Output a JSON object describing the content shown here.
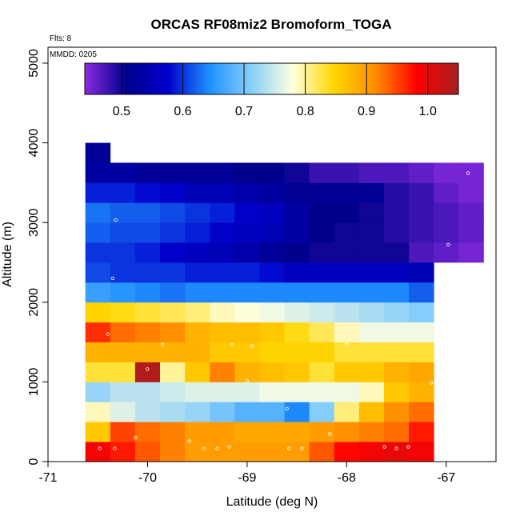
{
  "chart_data": {
    "type": "heatmap",
    "title": "ORCAS RF08miz2 Bromoform_TOGA",
    "annotations": {
      "flights": "Flts: 8",
      "date": "MMDD: 0205"
    },
    "xlabel": "Latitude (deg N)",
    "ylabel": "Altitude (m)",
    "xlim": [
      -71,
      -66.5
    ],
    "ylim": [
      0,
      5200
    ],
    "x_ticks": [
      -71,
      -70,
      -69,
      -68,
      -67
    ],
    "x_tick_labels": [
      "-71",
      "-70",
      "-69",
      "-68",
      "-67"
    ],
    "y_ticks": [
      0,
      1000,
      2000,
      3000,
      4000,
      5000
    ],
    "y_tick_labels": [
      "0",
      "1000",
      "2000",
      "3000",
      "4000",
      "5000"
    ],
    "colorbar": {
      "min": 0.44,
      "max": 1.05,
      "ticks": [
        0.5,
        0.6,
        0.7,
        0.8,
        0.9,
        1.0
      ],
      "tick_labels": [
        "0.5",
        "0.6",
        "0.7",
        "0.8",
        "0.9",
        "1.0"
      ],
      "stops": [
        "#8a2be2",
        "#00008b",
        "#0000cd",
        "#1e90ff",
        "#87cefa",
        "#ffffe0",
        "#ffd700",
        "#ff8c00",
        "#ff0000",
        "#a52020"
      ]
    },
    "x_cells": [
      -70.5,
      -70.25,
      -70.0,
      -69.75,
      -69.5,
      -69.25,
      -69.0,
      -68.75,
      -68.5,
      -68.25,
      -68.0,
      -67.75,
      -67.5,
      -67.25,
      -67.0,
      -66.75
    ],
    "rows": [
      {
        "alt": 125,
        "values": [
          0.99,
          0.97,
          0.94,
          0.92,
          0.9,
          0.9,
          0.9,
          0.9,
          0.9,
          0.94,
          0.98,
          0.99,
          1.0,
          0.99
        ]
      },
      {
        "alt": 375,
        "values": [
          0.86,
          0.95,
          0.93,
          0.92,
          0.9,
          0.9,
          0.89,
          0.89,
          0.89,
          0.9,
          0.91,
          0.92,
          0.93,
          0.97
        ]
      },
      {
        "alt": 625,
        "values": [
          0.79,
          0.76,
          0.74,
          0.73,
          0.72,
          0.7,
          0.68,
          0.68,
          0.64,
          0.71,
          0.81,
          0.87,
          0.91,
          0.93
        ]
      },
      {
        "alt": 875,
        "values": [
          0.72,
          0.74,
          0.74,
          0.75,
          0.76,
          0.76,
          0.76,
          0.77,
          0.77,
          0.77,
          0.77,
          0.79,
          0.86,
          0.88
        ]
      },
      {
        "alt": 1125,
        "values": [
          0.83,
          0.83,
          1.04,
          0.8,
          0.86,
          0.92,
          0.88,
          0.87,
          0.86,
          0.83,
          0.86,
          0.86,
          0.88,
          0.89
        ]
      },
      {
        "alt": 1375,
        "values": [
          0.88,
          0.88,
          0.88,
          0.88,
          0.88,
          0.86,
          0.86,
          0.85,
          0.85,
          0.85,
          0.83,
          0.83,
          0.83,
          0.83
        ]
      },
      {
        "alt": 1625,
        "values": [
          0.96,
          0.93,
          0.92,
          0.91,
          0.88,
          0.87,
          0.87,
          0.86,
          0.84,
          0.82,
          0.79,
          0.77,
          0.77,
          0.77
        ]
      },
      {
        "alt": 1875,
        "values": [
          0.85,
          0.84,
          0.83,
          0.82,
          0.81,
          0.79,
          0.78,
          0.77,
          0.76,
          0.75,
          0.74,
          0.73,
          0.72,
          0.71
        ]
      },
      {
        "alt": 2125,
        "values": [
          0.66,
          0.65,
          0.64,
          0.63,
          0.64,
          0.64,
          0.64,
          0.64,
          0.64,
          0.64,
          0.64,
          0.64,
          0.64,
          0.62
        ]
      },
      {
        "alt": 2375,
        "values": [
          0.61,
          0.6,
          0.6,
          0.6,
          0.59,
          0.59,
          0.59,
          0.58,
          0.56,
          0.56,
          0.56,
          0.56,
          0.56,
          0.55
        ]
      },
      {
        "alt": 2625,
        "values": [
          0.6,
          0.6,
          0.59,
          0.57,
          0.56,
          0.55,
          0.54,
          0.52,
          0.51,
          0.5,
          0.5,
          0.5,
          0.5,
          0.47,
          0.46,
          0.45
        ]
      },
      {
        "alt": 2875,
        "values": [
          0.62,
          0.61,
          0.61,
          0.6,
          0.59,
          0.57,
          0.56,
          0.55,
          0.53,
          0.51,
          0.5,
          0.5,
          0.49,
          0.48,
          0.47,
          0.46
        ]
      },
      {
        "alt": 3125,
        "values": [
          0.63,
          0.62,
          0.62,
          0.61,
          0.6,
          0.59,
          0.57,
          0.56,
          0.53,
          0.51,
          0.51,
          0.5,
          0.49,
          0.48,
          0.47,
          0.46
        ]
      },
      {
        "alt": 3375,
        "values": [
          0.59,
          0.59,
          0.58,
          0.57,
          0.55,
          0.55,
          0.54,
          0.53,
          0.52,
          0.52,
          0.52,
          0.52,
          0.49,
          0.48,
          0.46,
          0.45
        ]
      },
      {
        "alt": 3625,
        "values": [
          0.53,
          0.53,
          0.52,
          0.52,
          0.52,
          0.52,
          0.51,
          0.51,
          0.5,
          0.48,
          0.48,
          0.47,
          0.47,
          0.46,
          0.45,
          0.45
        ]
      },
      {
        "alt": 3875,
        "values": [
          0.52
        ]
      }
    ],
    "sample_points": [
      {
        "x": -70.48,
        "alt": 165
      },
      {
        "x": -70.33,
        "alt": 165
      },
      {
        "x": -70.12,
        "alt": 300
      },
      {
        "x": -69.58,
        "alt": 255
      },
      {
        "x": -69.43,
        "alt": 165
      },
      {
        "x": -69.3,
        "alt": 165
      },
      {
        "x": -69.18,
        "alt": 185
      },
      {
        "x": -68.58,
        "alt": 165
      },
      {
        "x": -68.45,
        "alt": 165
      },
      {
        "x": -68.17,
        "alt": 345
      },
      {
        "x": -67.62,
        "alt": 185
      },
      {
        "x": -67.5,
        "alt": 165
      },
      {
        "x": -67.38,
        "alt": 185
      },
      {
        "x": -68.6,
        "alt": 665
      },
      {
        "x": -69.0,
        "alt": 1010
      },
      {
        "x": -67.15,
        "alt": 990
      },
      {
        "x": -70.0,
        "alt": 1160
      },
      {
        "x": -69.85,
        "alt": 1470
      },
      {
        "x": -69.15,
        "alt": 1470
      },
      {
        "x": -68.95,
        "alt": 1450
      },
      {
        "x": -68.0,
        "alt": 1470
      },
      {
        "x": -70.4,
        "alt": 1600
      },
      {
        "x": -67.1,
        "alt": 1840
      },
      {
        "x": -70.35,
        "alt": 2300
      },
      {
        "x": -66.98,
        "alt": 2720
      },
      {
        "x": -70.32,
        "alt": 3030
      },
      {
        "x": -70.25,
        "alt": 3790
      },
      {
        "x": -66.78,
        "alt": 3620
      }
    ]
  }
}
